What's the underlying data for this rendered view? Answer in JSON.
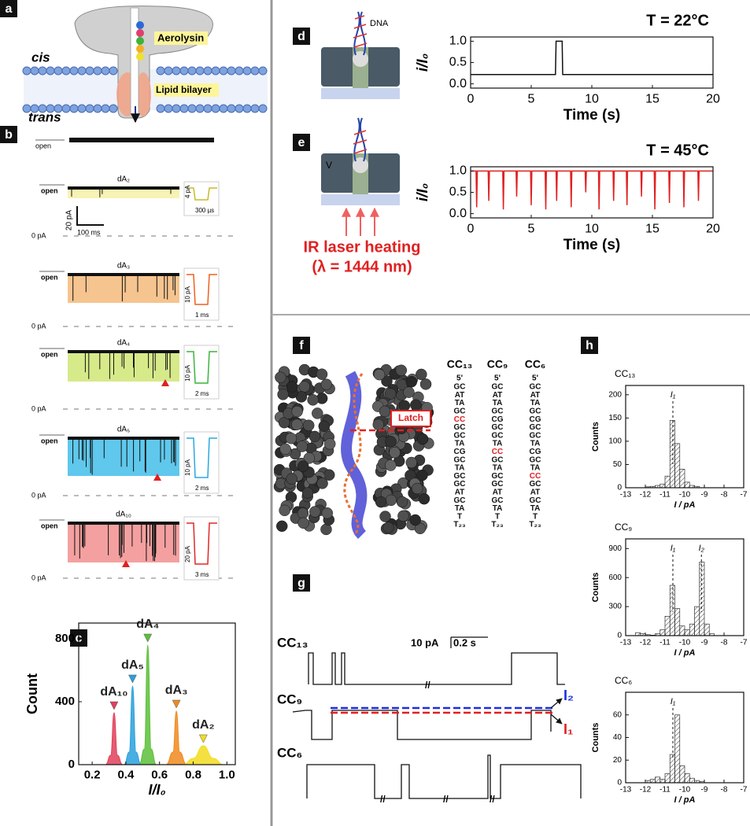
{
  "panel_labels": [
    "a",
    "b",
    "c",
    "d",
    "e",
    "f",
    "g",
    "h"
  ],
  "panel_a": {
    "cis": "cis",
    "trans": "trans",
    "protein": "Aerolysin",
    "membrane": "Lipid bilayer"
  },
  "panel_b": {
    "open": "open",
    "zero": "0 pA",
    "traces": [
      {
        "name": "dA₂",
        "fill": "#f7f3b4",
        "color": "#c8bb2a",
        "inset_current": "4 pA",
        "inset_time": "300 µs",
        "scale_current": "20 pA",
        "scale_time": "100 ms"
      },
      {
        "name": "dA₃",
        "fill": "#f6c48f",
        "color": "#f0601e",
        "inset_current": "10 pA",
        "inset_time": "1 ms"
      },
      {
        "name": "dA₄",
        "fill": "#d6ea8a",
        "color": "#3cb43c",
        "inset_current": "10 pA",
        "inset_time": "2 ms"
      },
      {
        "name": "dA₅",
        "fill": "#5fc8ec",
        "color": "#28a8e0",
        "inset_current": "10 pA",
        "inset_time": "2 ms"
      },
      {
        "name": "dA₁₀",
        "fill": "#f4a0a0",
        "color": "#e02828",
        "inset_current": "20 pA",
        "inset_time": "3 ms"
      }
    ]
  },
  "panel_d": {
    "strand": "DNA"
  },
  "panel_e": {
    "voltage": "V",
    "heating": "IR laser heating",
    "wavelength": "(λ = 1444 nm)"
  },
  "panel_f": {
    "latch": "Latch",
    "end": "5'",
    "columns": [
      {
        "name": "CC₁₃",
        "highlight": 4,
        "pairs": [
          "GC",
          "AT",
          "TA",
          "GC",
          "CC",
          "GC",
          "GC",
          "TA",
          "CG",
          "GC",
          "TA",
          "GC",
          "GC",
          "AT",
          "GC",
          "TA",
          "T",
          "T₂₃"
        ]
      },
      {
        "name": "CC₉",
        "highlight": 8,
        "pairs": [
          "GC",
          "AT",
          "TA",
          "GC",
          "CG",
          "GC",
          "GC",
          "TA",
          "CC",
          "GC",
          "TA",
          "GC",
          "GC",
          "AT",
          "GC",
          "TA",
          "T",
          "T₂₃"
        ]
      },
      {
        "name": "CC₆",
        "highlight": 11,
        "pairs": [
          "GC",
          "AT",
          "TA",
          "GC",
          "CG",
          "GC",
          "GC",
          "TA",
          "CG",
          "GC",
          "TA",
          "CC",
          "GC",
          "AT",
          "GC",
          "TA",
          "T",
          "T₂₃"
        ]
      }
    ]
  },
  "panel_g": {
    "traces": [
      "CC₁₃",
      "CC₉",
      "CC₆"
    ],
    "scale_current": "10 pA",
    "scale_time": "0.2 s",
    "break": "//",
    "levels": [
      "I₂",
      "I₁"
    ]
  },
  "chart_data": [
    {
      "type": "area",
      "xlabel": "I/I₀",
      "ylabel": "Count",
      "xlim": [
        0.12,
        1.05
      ],
      "ylim": [
        0,
        900
      ],
      "xticks": [
        0.2,
        0.4,
        0.6,
        0.8,
        {
          "value": 1.0,
          "label": "1.0"
        }
      ],
      "yticks": [
        0,
        400,
        800
      ],
      "series": [
        {
          "name": "dA₁₀",
          "color": "#e0405a",
          "x": [
            0.28,
            0.31,
            0.33,
            0.35,
            0.38
          ],
          "values": [
            0,
            60,
            330,
            60,
            0
          ]
        },
        {
          "name": "dA₅",
          "color": "#2aa0dc",
          "x": [
            0.39,
            0.42,
            0.44,
            0.46,
            0.49
          ],
          "values": [
            0,
            80,
            500,
            80,
            0
          ]
        },
        {
          "name": "dA₄",
          "color": "#5cbf3a",
          "x": [
            0.48,
            0.51,
            0.53,
            0.55,
            0.58
          ],
          "values": [
            0,
            100,
            760,
            100,
            0
          ]
        },
        {
          "name": "dA₃",
          "color": "#f08a1e",
          "x": [
            0.64,
            0.68,
            0.7,
            0.72,
            0.76
          ],
          "values": [
            0,
            80,
            340,
            80,
            0
          ]
        },
        {
          "name": "dA₂",
          "color": "#f2dc20",
          "x": [
            0.74,
            0.8,
            0.86,
            0.92,
            0.98
          ],
          "values": [
            0,
            40,
            120,
            40,
            0
          ]
        }
      ]
    },
    {
      "type": "line",
      "annotation": "T = 22°C",
      "xlabel": "Time (s)",
      "ylabel": "i/I₀",
      "xlim": [
        0,
        20
      ],
      "ylim": [
        -0.1,
        1.1
      ],
      "xticks": [
        0,
        5,
        10,
        15,
        20
      ],
      "yticks": [
        {
          "value": 0,
          "label": "0.0"
        },
        0.5,
        {
          "value": 1,
          "label": "1.0"
        }
      ],
      "series": [
        {
          "color": "#111111",
          "x": [
            0,
            7.0,
            7.05,
            7.55,
            7.6,
            20
          ],
          "values": [
            0.22,
            0.22,
            1.0,
            1.0,
            0.22,
            0.22
          ]
        }
      ]
    },
    {
      "type": "line",
      "annotation": "T = 45°C",
      "xlabel": "Time (s)",
      "ylabel": "i/I₀",
      "xlim": [
        0,
        20
      ],
      "ylim": [
        -0.1,
        1.1
      ],
      "xticks": [
        0,
        5,
        10,
        15,
        20
      ],
      "yticks": [
        {
          "value": 0,
          "label": "0.0"
        },
        0.5,
        {
          "value": 1,
          "label": "1.0"
        }
      ],
      "series": [
        {
          "color": "#e02020",
          "x": [
            0,
            0.45,
            0.5,
            0.55,
            1.45,
            1.5,
            1.55,
            2.65,
            2.7,
            2.75,
            3.75,
            3.8,
            3.85,
            4.95,
            5.0,
            5.05,
            6.15,
            6.2,
            6.25,
            7.05,
            7.1,
            7.15,
            8.25,
            8.3,
            8.35,
            9.45,
            9.5,
            9.55,
            10.55,
            10.6,
            10.65,
            11.75,
            11.8,
            11.85,
            12.85,
            12.9,
            12.95,
            14.05,
            14.1,
            14.15,
            15.15,
            15.2,
            15.25,
            16.35,
            16.4,
            16.45,
            17.55,
            17.6,
            17.65,
            18.75,
            18.8,
            18.85,
            20
          ],
          "values": [
            1,
            1,
            0.15,
            1,
            1,
            0.3,
            1,
            1,
            0.1,
            1,
            1,
            0.4,
            1,
            1,
            0.2,
            1,
            1,
            0.1,
            1,
            1,
            0.3,
            1,
            1,
            0.15,
            1,
            1,
            0.5,
            1,
            1,
            0.1,
            1,
            1,
            0.3,
            1,
            1,
            0.2,
            1,
            1,
            0.4,
            1,
            1,
            0.1,
            1,
            1,
            0.25,
            1,
            1,
            0.15,
            1,
            1,
            0.3,
            1,
            1
          ]
        }
      ]
    },
    {
      "type": "histogram",
      "title": "CC₁₃",
      "xlabel": "I / pA",
      "ylabel": "Counts",
      "color": "#333333",
      "xlim": [
        -13,
        -7
      ],
      "ylim": [
        0,
        220
      ],
      "xticks": [
        -13,
        -12,
        -11,
        -10,
        -9,
        -8,
        -7
      ],
      "yticks": [
        0,
        50,
        100,
        150,
        200
      ],
      "bins": [
        -13,
        -12.75,
        -12.5,
        -12.25,
        -12,
        -11.75,
        -11.5,
        -11.25,
        -11,
        -10.75,
        -10.5,
        -10.25,
        -10,
        -9.75,
        -9.5,
        -9.25,
        -9,
        -8.75,
        -8.5,
        -8.25,
        -8,
        -7.75,
        -7.5,
        -7.25,
        -7
      ],
      "values": [
        0,
        0,
        0,
        0,
        2,
        3,
        5,
        8,
        25,
        145,
        95,
        40,
        12,
        5,
        3,
        0,
        0,
        0,
        0,
        0,
        0,
        0,
        0,
        0
      ],
      "markers": [
        {
          "label": "I₁",
          "x": -10.6
        }
      ]
    },
    {
      "type": "histogram",
      "title": "CC₉",
      "xlabel": "I / pA",
      "ylabel": "Counts",
      "color": "#333333",
      "xlim": [
        -13,
        -7
      ],
      "ylim": [
        0,
        1000
      ],
      "xticks": [
        -13,
        -12,
        -11,
        -10,
        -9,
        -8,
        -7
      ],
      "yticks": [
        0,
        300,
        600,
        900
      ],
      "bins": [
        -13,
        -12.75,
        -12.5,
        -12.25,
        -12,
        -11.75,
        -11.5,
        -11.25,
        -11,
        -10.75,
        -10.5,
        -10.25,
        -10,
        -9.75,
        -9.5,
        -9.25,
        -9,
        -8.75,
        -8.5,
        -8.25,
        -8,
        -7.75,
        -7.5,
        -7.25,
        -7
      ],
      "values": [
        0,
        0,
        30,
        20,
        10,
        5,
        20,
        60,
        200,
        520,
        280,
        100,
        60,
        120,
        300,
        760,
        120,
        20,
        0,
        0,
        0,
        0,
        0,
        0
      ],
      "markers": [
        {
          "label": "I₁",
          "x": -10.6
        },
        {
          "label": "I₂",
          "x": -9.15
        }
      ]
    },
    {
      "type": "histogram",
      "title": "CC₆",
      "xlabel": "I / pA",
      "ylabel": "Counts",
      "color": "#333333",
      "xlim": [
        -13,
        -7
      ],
      "ylim": [
        0,
        80
      ],
      "xticks": [
        -13,
        -12,
        -11,
        -10,
        -9,
        -8,
        -7
      ],
      "yticks": [
        0,
        20,
        40,
        60
      ],
      "bins": [
        -13,
        -12.75,
        -12.5,
        -12.25,
        -12,
        -11.75,
        -11.5,
        -11.25,
        -11,
        -10.75,
        -10.5,
        -10.25,
        -10,
        -9.75,
        -9.5,
        -9.25,
        -9,
        -8.75,
        -8.5,
        -8.25,
        -8,
        -7.75,
        -7.5,
        -7.25,
        -7
      ],
      "values": [
        0,
        0,
        0,
        0,
        2,
        3,
        5,
        3,
        8,
        25,
        60,
        15,
        8,
        4,
        2,
        1,
        0,
        0,
        0,
        0,
        0,
        0,
        0,
        0
      ],
      "markers": [
        {
          "label": "I₁",
          "x": -10.6
        }
      ]
    }
  ]
}
